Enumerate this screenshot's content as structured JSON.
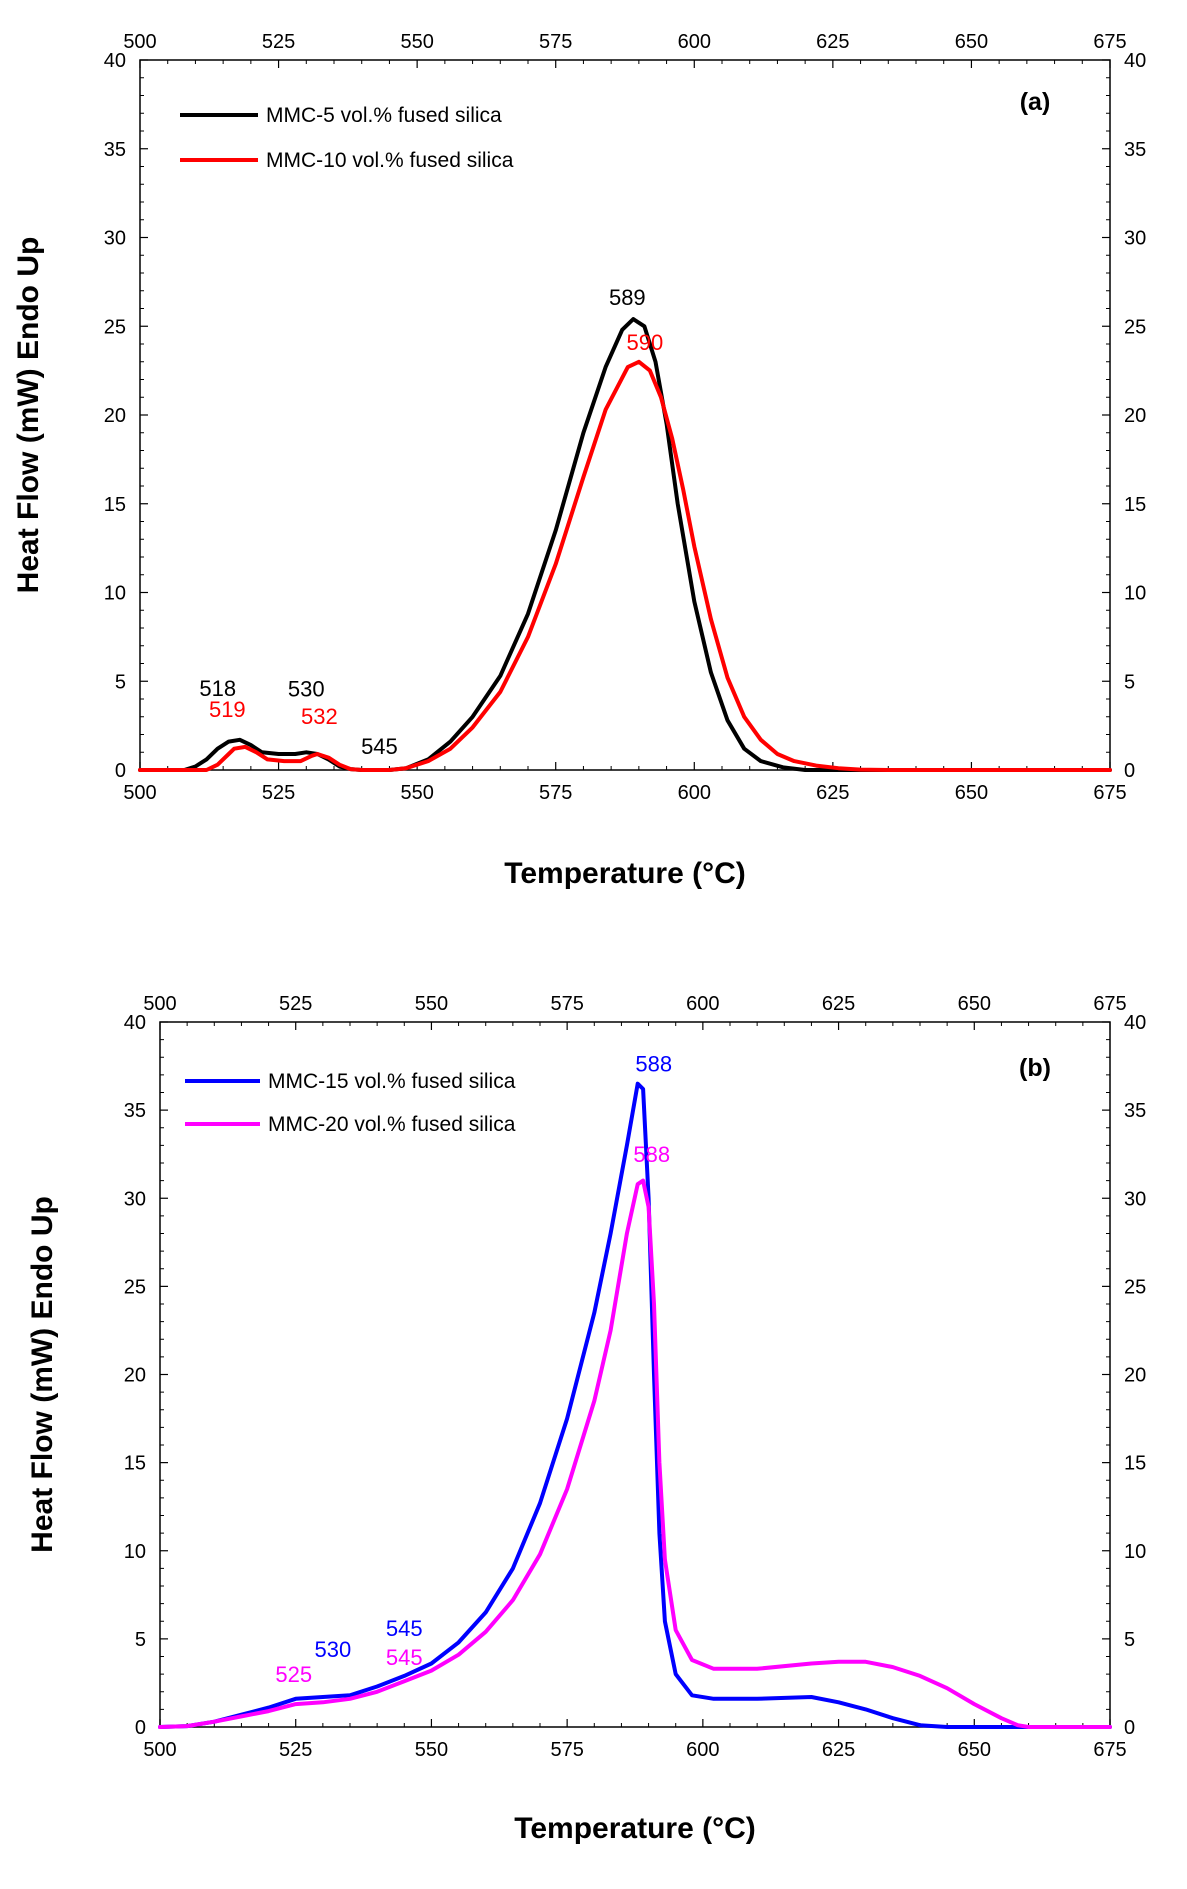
{
  "chart_data": [
    {
      "type": "line",
      "panel": "(a)",
      "xlabel": "Temperature (°C)",
      "ylabel": "Heat Flow (mW) Endo Up",
      "xlim": [
        500,
        675
      ],
      "ylim": [
        0,
        40
      ],
      "xticks": [
        500,
        525,
        550,
        575,
        600,
        625,
        650,
        675
      ],
      "yticks": [
        0,
        5,
        10,
        15,
        20,
        25,
        30,
        35,
        40
      ],
      "legend_position": "top-left",
      "series": [
        {
          "name": "MMC-5 vol.% fused silica",
          "color": "#000000",
          "points": [
            [
              500,
              0
            ],
            [
              508,
              0
            ],
            [
              510,
              0.2
            ],
            [
              512,
              0.6
            ],
            [
              514,
              1.2
            ],
            [
              516,
              1.6
            ],
            [
              518,
              1.7
            ],
            [
              520,
              1.4
            ],
            [
              522,
              1.0
            ],
            [
              525,
              0.9
            ],
            [
              528,
              0.9
            ],
            [
              530,
              1.0
            ],
            [
              532,
              0.9
            ],
            [
              534,
              0.6
            ],
            [
              536,
              0.2
            ],
            [
              538,
              0.05
            ],
            [
              540,
              0
            ],
            [
              545,
              0
            ],
            [
              548,
              0.1
            ],
            [
              552,
              0.6
            ],
            [
              556,
              1.6
            ],
            [
              560,
              3.0
            ],
            [
              565,
              5.3
            ],
            [
              570,
              8.8
            ],
            [
              575,
              13.5
            ],
            [
              580,
              19.0
            ],
            [
              584,
              22.7
            ],
            [
              587,
              24.8
            ],
            [
              589,
              25.4
            ],
            [
              591,
              25.0
            ],
            [
              593,
              23.0
            ],
            [
              595,
              19.5
            ],
            [
              597,
              15.0
            ],
            [
              600,
              9.5
            ],
            [
              603,
              5.5
            ],
            [
              606,
              2.8
            ],
            [
              609,
              1.2
            ],
            [
              612,
              0.5
            ],
            [
              616,
              0.15
            ],
            [
              620,
              0
            ],
            [
              675,
              0
            ]
          ]
        },
        {
          "name": "MMC-10 vol.% fused silica",
          "color": "#ff0000",
          "points": [
            [
              500,
              0
            ],
            [
              512,
              0
            ],
            [
              514,
              0.3
            ],
            [
              516,
              0.9
            ],
            [
              517,
              1.2
            ],
            [
              519,
              1.3
            ],
            [
              521,
              1.0
            ],
            [
              523,
              0.6
            ],
            [
              526,
              0.5
            ],
            [
              529,
              0.5
            ],
            [
              531,
              0.8
            ],
            [
              532,
              0.9
            ],
            [
              534,
              0.7
            ],
            [
              536,
              0.3
            ],
            [
              538,
              0.05
            ],
            [
              540,
              0
            ],
            [
              545,
              0
            ],
            [
              548,
              0.1
            ],
            [
              552,
              0.5
            ],
            [
              556,
              1.2
            ],
            [
              560,
              2.4
            ],
            [
              565,
              4.4
            ],
            [
              570,
              7.5
            ],
            [
              575,
              11.6
            ],
            [
              580,
              16.5
            ],
            [
              584,
              20.3
            ],
            [
              588,
              22.7
            ],
            [
              590,
              23.0
            ],
            [
              592,
              22.5
            ],
            [
              594,
              21.0
            ],
            [
              596,
              18.7
            ],
            [
              598,
              15.8
            ],
            [
              600,
              12.6
            ],
            [
              603,
              8.5
            ],
            [
              606,
              5.2
            ],
            [
              609,
              3.0
            ],
            [
              612,
              1.7
            ],
            [
              615,
              0.9
            ],
            [
              618,
              0.5
            ],
            [
              622,
              0.25
            ],
            [
              626,
              0.1
            ],
            [
              630,
              0.02
            ],
            [
              635,
              0
            ],
            [
              675,
              0
            ]
          ]
        }
      ],
      "annotations": [
        {
          "text": "518",
          "x": 518,
          "color": "#000000"
        },
        {
          "text": "519",
          "x": 519,
          "color": "#ff0000"
        },
        {
          "text": "530",
          "x": 530,
          "color": "#000000"
        },
        {
          "text": "532",
          "x": 532,
          "color": "#ff0000"
        },
        {
          "text": "545",
          "x": 545,
          "color": "#000000"
        },
        {
          "text": "589",
          "x": 589,
          "color": "#000000"
        },
        {
          "text": "590",
          "x": 590,
          "color": "#ff0000"
        }
      ]
    },
    {
      "type": "line",
      "panel": "(b)",
      "xlabel": "Temperature (°C)",
      "ylabel": "Heat Flow (mW) Endo Up",
      "xlim": [
        500,
        675
      ],
      "ylim": [
        0,
        40
      ],
      "xticks": [
        500,
        525,
        550,
        575,
        600,
        625,
        650,
        675
      ],
      "yticks": [
        0,
        5,
        10,
        15,
        20,
        25,
        30,
        35,
        40
      ],
      "legend_position": "top-left",
      "series": [
        {
          "name": "MMC-15 vol.% fused silica",
          "color": "#0000ff",
          "points": [
            [
              500,
              0
            ],
            [
              505,
              0.05
            ],
            [
              510,
              0.3
            ],
            [
              515,
              0.7
            ],
            [
              520,
              1.1
            ],
            [
              525,
              1.6
            ],
            [
              530,
              1.7
            ],
            [
              535,
              1.8
            ],
            [
              540,
              2.3
            ],
            [
              545,
              2.9
            ],
            [
              550,
              3.6
            ],
            [
              555,
              4.8
            ],
            [
              560,
              6.5
            ],
            [
              565,
              9.0
            ],
            [
              570,
              12.7
            ],
            [
              575,
              17.5
            ],
            [
              580,
              23.5
            ],
            [
              583,
              28.0
            ],
            [
              586,
              33.0
            ],
            [
              588,
              36.5
            ],
            [
              589,
              36.2
            ],
            [
              590,
              30.0
            ],
            [
              591,
              20.0
            ],
            [
              592,
              11.0
            ],
            [
              593,
              6.0
            ],
            [
              595,
              3.0
            ],
            [
              598,
              1.8
            ],
            [
              602,
              1.6
            ],
            [
              610,
              1.6
            ],
            [
              620,
              1.7
            ],
            [
              625,
              1.4
            ],
            [
              630,
              1.0
            ],
            [
              635,
              0.5
            ],
            [
              640,
              0.1
            ],
            [
              645,
              0
            ],
            [
              675,
              0
            ]
          ]
        },
        {
          "name": "MMC-20 vol.% fused silica",
          "color": "#ff00ff",
          "points": [
            [
              500,
              0
            ],
            [
              505,
              0.05
            ],
            [
              510,
              0.3
            ],
            [
              515,
              0.6
            ],
            [
              520,
              0.9
            ],
            [
              525,
              1.3
            ],
            [
              530,
              1.4
            ],
            [
              535,
              1.6
            ],
            [
              540,
              2.0
            ],
            [
              545,
              2.6
            ],
            [
              550,
              3.2
            ],
            [
              555,
              4.1
            ],
            [
              560,
              5.4
            ],
            [
              565,
              7.2
            ],
            [
              570,
              9.8
            ],
            [
              575,
              13.5
            ],
            [
              580,
              18.5
            ],
            [
              583,
              22.5
            ],
            [
              586,
              28.0
            ],
            [
              588,
              30.8
            ],
            [
              589,
              31.0
            ],
            [
              590,
              29.5
            ],
            [
              591,
              24.0
            ],
            [
              592,
              15.0
            ],
            [
              593,
              9.5
            ],
            [
              595,
              5.5
            ],
            [
              598,
              3.8
            ],
            [
              602,
              3.3
            ],
            [
              610,
              3.3
            ],
            [
              620,
              3.6
            ],
            [
              625,
              3.7
            ],
            [
              630,
              3.7
            ],
            [
              635,
              3.4
            ],
            [
              640,
              2.9
            ],
            [
              645,
              2.2
            ],
            [
              650,
              1.3
            ],
            [
              655,
              0.5
            ],
            [
              658,
              0.1
            ],
            [
              660,
              0
            ],
            [
              675,
              0
            ]
          ]
        }
      ],
      "annotations": [
        {
          "text": "525",
          "x": 525,
          "color": "#ff00ff"
        },
        {
          "text": "530",
          "x": 530,
          "color": "#0000ff"
        },
        {
          "text": "545",
          "x": 545,
          "color": "#0000ff"
        },
        {
          "text": "545",
          "x": 545,
          "color": "#ff00ff"
        },
        {
          "text": "588",
          "x": 588,
          "color": "#0000ff"
        },
        {
          "text": "588",
          "x": 588,
          "color": "#ff00ff"
        }
      ]
    }
  ]
}
